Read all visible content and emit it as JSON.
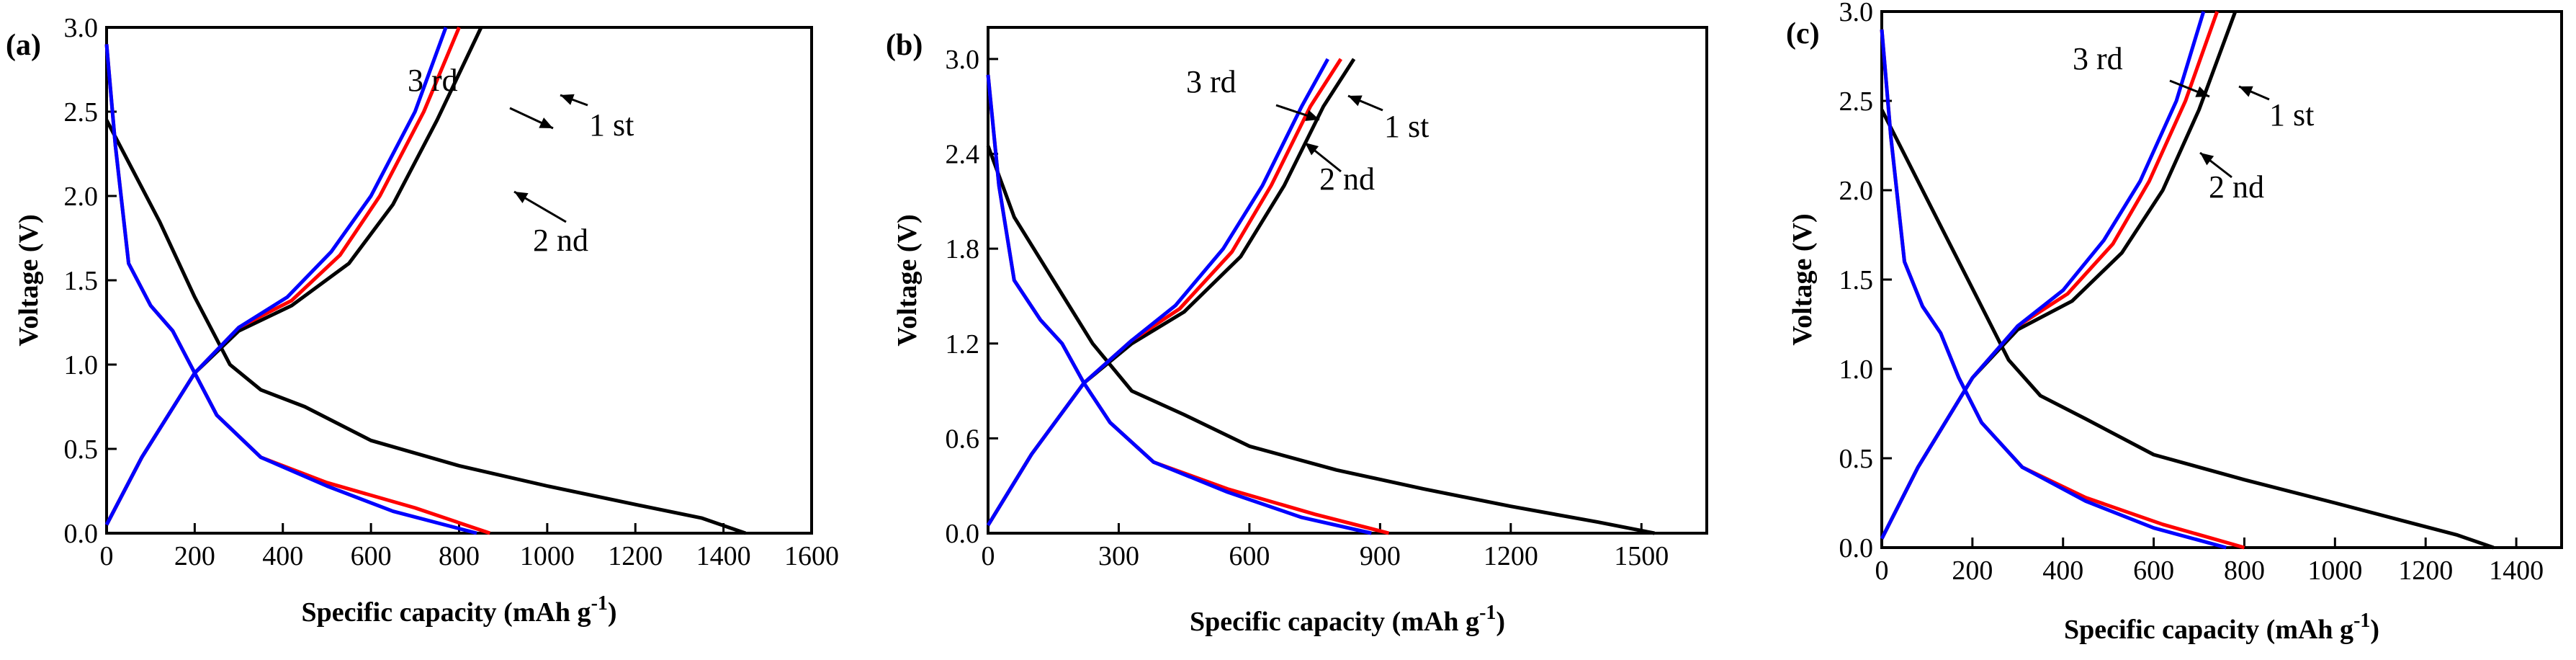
{
  "colors": {
    "first": "#000000",
    "second": "#ff0000",
    "third": "#0000ff"
  },
  "chart_data": [
    {
      "type": "line",
      "panel": "(a)",
      "xlabel": "Specific capacity (mAh g",
      "xlabel_sup": "-1",
      "xlabel_close": ")",
      "ylabel": "Voltage (V)",
      "xlim": [
        0,
        1600
      ],
      "ylim": [
        0,
        3.0
      ],
      "xticks": [
        "0",
        "200",
        "400",
        "600",
        "800",
        "1000",
        "1200",
        "1400",
        "1600"
      ],
      "yticks": [
        "0.0",
        "0.5",
        "1.0",
        "1.5",
        "2.0",
        "2.5",
        "3.0"
      ],
      "annotations": [
        "3 rd",
        "2 nd",
        "1 st"
      ],
      "series": [
        {
          "name": "1 st discharge",
          "color": "first",
          "points": [
            [
              0,
              2.45
            ],
            [
              50,
              2.2
            ],
            [
              120,
              1.85
            ],
            [
              200,
              1.4
            ],
            [
              280,
              1.0
            ],
            [
              350,
              0.85
            ],
            [
              450,
              0.75
            ],
            [
              600,
              0.55
            ],
            [
              800,
              0.4
            ],
            [
              1000,
              0.28
            ],
            [
              1200,
              0.17
            ],
            [
              1350,
              0.09
            ],
            [
              1450,
              0.0
            ]
          ]
        },
        {
          "name": "1 st charge",
          "color": "first",
          "points": [
            [
              0,
              0.05
            ],
            [
              80,
              0.45
            ],
            [
              200,
              0.95
            ],
            [
              300,
              1.2
            ],
            [
              420,
              1.35
            ],
            [
              550,
              1.6
            ],
            [
              650,
              1.95
            ],
            [
              750,
              2.45
            ],
            [
              850,
              3.0
            ]
          ]
        },
        {
          "name": "2 nd discharge",
          "color": "second",
          "points": [
            [
              0,
              2.9
            ],
            [
              20,
              2.3
            ],
            [
              50,
              1.6
            ],
            [
              100,
              1.35
            ],
            [
              150,
              1.2
            ],
            [
              200,
              0.95
            ],
            [
              250,
              0.7
            ],
            [
              350,
              0.45
            ],
            [
              500,
              0.3
            ],
            [
              700,
              0.15
            ],
            [
              870,
              0.0
            ]
          ]
        },
        {
          "name": "2 nd charge",
          "color": "second",
          "points": [
            [
              0,
              0.05
            ],
            [
              80,
              0.45
            ],
            [
              200,
              0.95
            ],
            [
              300,
              1.22
            ],
            [
              420,
              1.38
            ],
            [
              530,
              1.65
            ],
            [
              620,
              2.0
            ],
            [
              720,
              2.5
            ],
            [
              800,
              3.0
            ]
          ]
        },
        {
          "name": "3 rd discharge",
          "color": "third",
          "points": [
            [
              0,
              2.9
            ],
            [
              20,
              2.3
            ],
            [
              50,
              1.6
            ],
            [
              100,
              1.35
            ],
            [
              150,
              1.2
            ],
            [
              200,
              0.95
            ],
            [
              250,
              0.7
            ],
            [
              350,
              0.45
            ],
            [
              500,
              0.28
            ],
            [
              650,
              0.13
            ],
            [
              840,
              0.0
            ]
          ]
        },
        {
          "name": "3 rd charge",
          "color": "third",
          "points": [
            [
              0,
              0.05
            ],
            [
              80,
              0.45
            ],
            [
              200,
              0.95
            ],
            [
              300,
              1.22
            ],
            [
              410,
              1.4
            ],
            [
              510,
              1.67
            ],
            [
              600,
              2.0
            ],
            [
              700,
              2.5
            ],
            [
              770,
              3.0
            ]
          ]
        }
      ]
    },
    {
      "type": "line",
      "panel": "(b)",
      "xlabel": "Specific capacity (mAh g",
      "xlabel_sup": "-1",
      "xlabel_close": ")",
      "ylabel": "Voltage (V)",
      "xlim": [
        0,
        1650
      ],
      "ylim": [
        0,
        3.2
      ],
      "xticks": [
        "0",
        "300",
        "600",
        "900",
        "1200",
        "1500"
      ],
      "yticks": [
        "0.0",
        "0.6",
        "1.2",
        "1.8",
        "2.4",
        "3.0"
      ],
      "annotations": [
        "3 rd",
        "2 nd",
        "1 st"
      ],
      "series": [
        {
          "name": "1 st discharge",
          "color": "first",
          "points": [
            [
              0,
              2.45
            ],
            [
              60,
              2.0
            ],
            [
              150,
              1.6
            ],
            [
              240,
              1.2
            ],
            [
              330,
              0.9
            ],
            [
              450,
              0.75
            ],
            [
              600,
              0.55
            ],
            [
              800,
              0.4
            ],
            [
              1000,
              0.28
            ],
            [
              1200,
              0.17
            ],
            [
              1400,
              0.07
            ],
            [
              1530,
              0.0
            ]
          ]
        },
        {
          "name": "1 st charge",
          "color": "first",
          "points": [
            [
              0,
              0.05
            ],
            [
              100,
              0.5
            ],
            [
              220,
              0.95
            ],
            [
              330,
              1.2
            ],
            [
              450,
              1.4
            ],
            [
              580,
              1.75
            ],
            [
              680,
              2.2
            ],
            [
              770,
              2.7
            ],
            [
              840,
              3.0
            ]
          ]
        },
        {
          "name": "2 nd discharge",
          "color": "second",
          "points": [
            [
              0,
              2.9
            ],
            [
              25,
              2.2
            ],
            [
              60,
              1.6
            ],
            [
              120,
              1.35
            ],
            [
              170,
              1.2
            ],
            [
              220,
              0.95
            ],
            [
              280,
              0.7
            ],
            [
              380,
              0.45
            ],
            [
              550,
              0.28
            ],
            [
              750,
              0.12
            ],
            [
              920,
              0.0
            ]
          ]
        },
        {
          "name": "2 nd charge",
          "color": "second",
          "points": [
            [
              0,
              0.05
            ],
            [
              100,
              0.5
            ],
            [
              220,
              0.95
            ],
            [
              330,
              1.22
            ],
            [
              440,
              1.42
            ],
            [
              560,
              1.78
            ],
            [
              650,
              2.2
            ],
            [
              740,
              2.7
            ],
            [
              810,
              3.0
            ]
          ]
        },
        {
          "name": "3 rd discharge",
          "color": "third",
          "points": [
            [
              0,
              2.9
            ],
            [
              25,
              2.2
            ],
            [
              60,
              1.6
            ],
            [
              120,
              1.35
            ],
            [
              170,
              1.2
            ],
            [
              220,
              0.95
            ],
            [
              280,
              0.7
            ],
            [
              380,
              0.45
            ],
            [
              550,
              0.26
            ],
            [
              720,
              0.1
            ],
            [
              880,
              0.0
            ]
          ]
        },
        {
          "name": "3 rd charge",
          "color": "third",
          "points": [
            [
              0,
              0.05
            ],
            [
              100,
              0.5
            ],
            [
              220,
              0.95
            ],
            [
              330,
              1.22
            ],
            [
              430,
              1.44
            ],
            [
              540,
              1.8
            ],
            [
              630,
              2.2
            ],
            [
              720,
              2.7
            ],
            [
              780,
              3.0
            ]
          ]
        }
      ]
    },
    {
      "type": "line",
      "panel": "(c)",
      "xlabel": "Specific capacity (mAh g",
      "xlabel_sup": "-1",
      "xlabel_close": ")",
      "ylabel": "Voltage (V)",
      "xlim": [
        0,
        1500
      ],
      "ylim": [
        0,
        3.0
      ],
      "xticks": [
        "0",
        "200",
        "400",
        "600",
        "800",
        "1000",
        "1200",
        "1400"
      ],
      "yticks": [
        "0.0",
        "0.5",
        "1.0",
        "1.5",
        "2.0",
        "2.5",
        "3.0"
      ],
      "annotations": [
        "3 rd",
        "2 nd",
        "1 st"
      ],
      "series": [
        {
          "name": "1 st discharge",
          "color": "first",
          "points": [
            [
              0,
              2.45
            ],
            [
              50,
              2.2
            ],
            [
              120,
              1.85
            ],
            [
              200,
              1.45
            ],
            [
              280,
              1.05
            ],
            [
              350,
              0.85
            ],
            [
              450,
              0.72
            ],
            [
              600,
              0.52
            ],
            [
              800,
              0.38
            ],
            [
              1000,
              0.25
            ],
            [
              1150,
              0.15
            ],
            [
              1270,
              0.07
            ],
            [
              1350,
              0.0
            ]
          ]
        },
        {
          "name": "1 st charge",
          "color": "first",
          "points": [
            [
              0,
              0.05
            ],
            [
              80,
              0.45
            ],
            [
              200,
              0.95
            ],
            [
              300,
              1.22
            ],
            [
              420,
              1.38
            ],
            [
              530,
              1.65
            ],
            [
              620,
              2.0
            ],
            [
              700,
              2.45
            ],
            [
              780,
              3.0
            ]
          ]
        },
        {
          "name": "2 nd discharge",
          "color": "second",
          "points": [
            [
              0,
              2.9
            ],
            [
              20,
              2.3
            ],
            [
              50,
              1.6
            ],
            [
              90,
              1.35
            ],
            [
              130,
              1.2
            ],
            [
              170,
              0.95
            ],
            [
              220,
              0.7
            ],
            [
              310,
              0.45
            ],
            [
              450,
              0.28
            ],
            [
              620,
              0.13
            ],
            [
              800,
              0.0
            ]
          ]
        },
        {
          "name": "2 nd charge",
          "color": "second",
          "points": [
            [
              0,
              0.05
            ],
            [
              80,
              0.45
            ],
            [
              200,
              0.95
            ],
            [
              300,
              1.24
            ],
            [
              410,
              1.42
            ],
            [
              510,
              1.7
            ],
            [
              590,
              2.05
            ],
            [
              670,
              2.5
            ],
            [
              740,
              3.0
            ]
          ]
        },
        {
          "name": "3 rd discharge",
          "color": "third",
          "points": [
            [
              0,
              2.9
            ],
            [
              20,
              2.3
            ],
            [
              50,
              1.6
            ],
            [
              90,
              1.35
            ],
            [
              130,
              1.2
            ],
            [
              170,
              0.95
            ],
            [
              220,
              0.7
            ],
            [
              310,
              0.45
            ],
            [
              450,
              0.26
            ],
            [
              600,
              0.11
            ],
            [
              760,
              0.0
            ]
          ]
        },
        {
          "name": "3 rd charge",
          "color": "third",
          "points": [
            [
              0,
              0.05
            ],
            [
              80,
              0.45
            ],
            [
              200,
              0.95
            ],
            [
              300,
              1.24
            ],
            [
              400,
              1.44
            ],
            [
              490,
              1.72
            ],
            [
              570,
              2.05
            ],
            [
              650,
              2.5
            ],
            [
              710,
              3.0
            ]
          ]
        }
      ]
    }
  ]
}
